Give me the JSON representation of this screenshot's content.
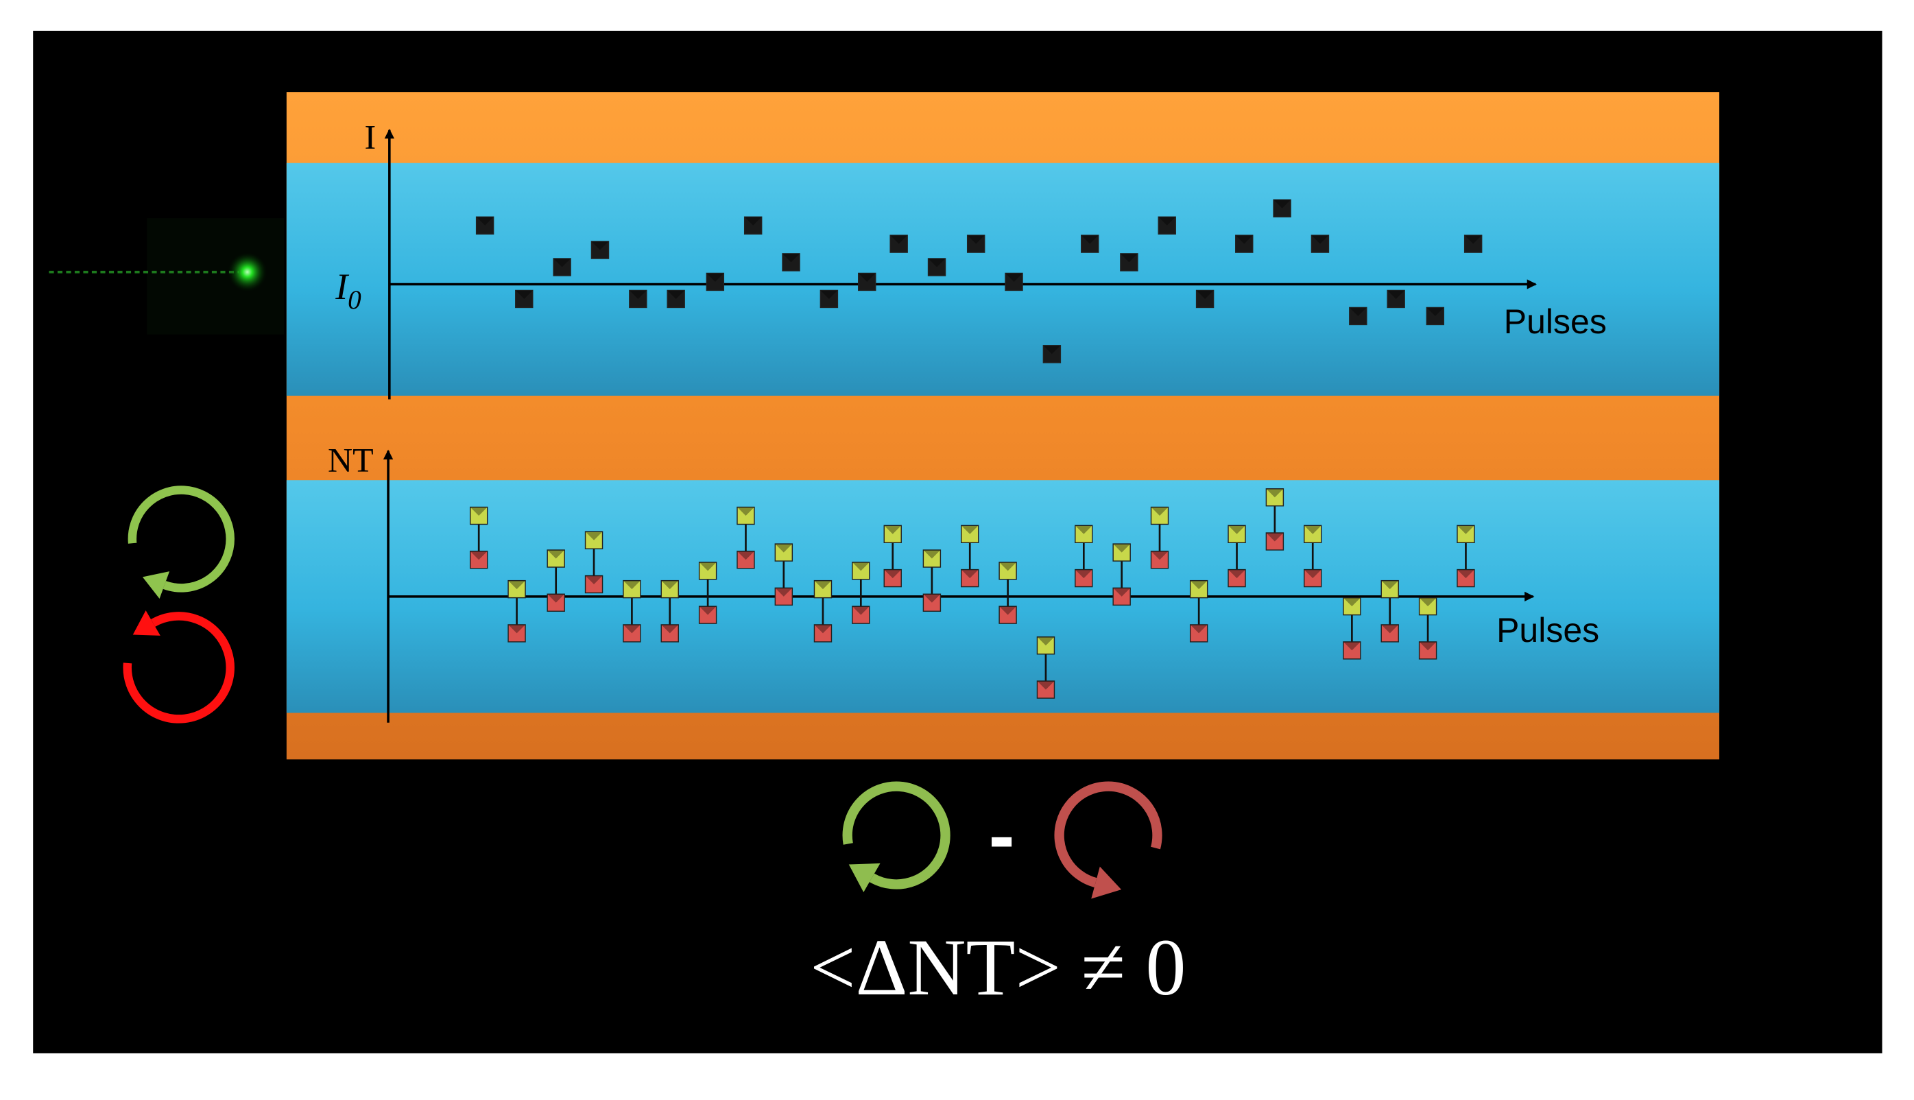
{
  "top_panel": {
    "y_axis_label": "I",
    "baseline_label": "I",
    "baseline_subscript": "0",
    "x_axis_label": "Pulses"
  },
  "bottom_panel": {
    "y_axis_label": "NT",
    "x_axis_label": "Pulses"
  },
  "difference_operator": "-",
  "equation": "<ΔNT> ≠ 0"
}
